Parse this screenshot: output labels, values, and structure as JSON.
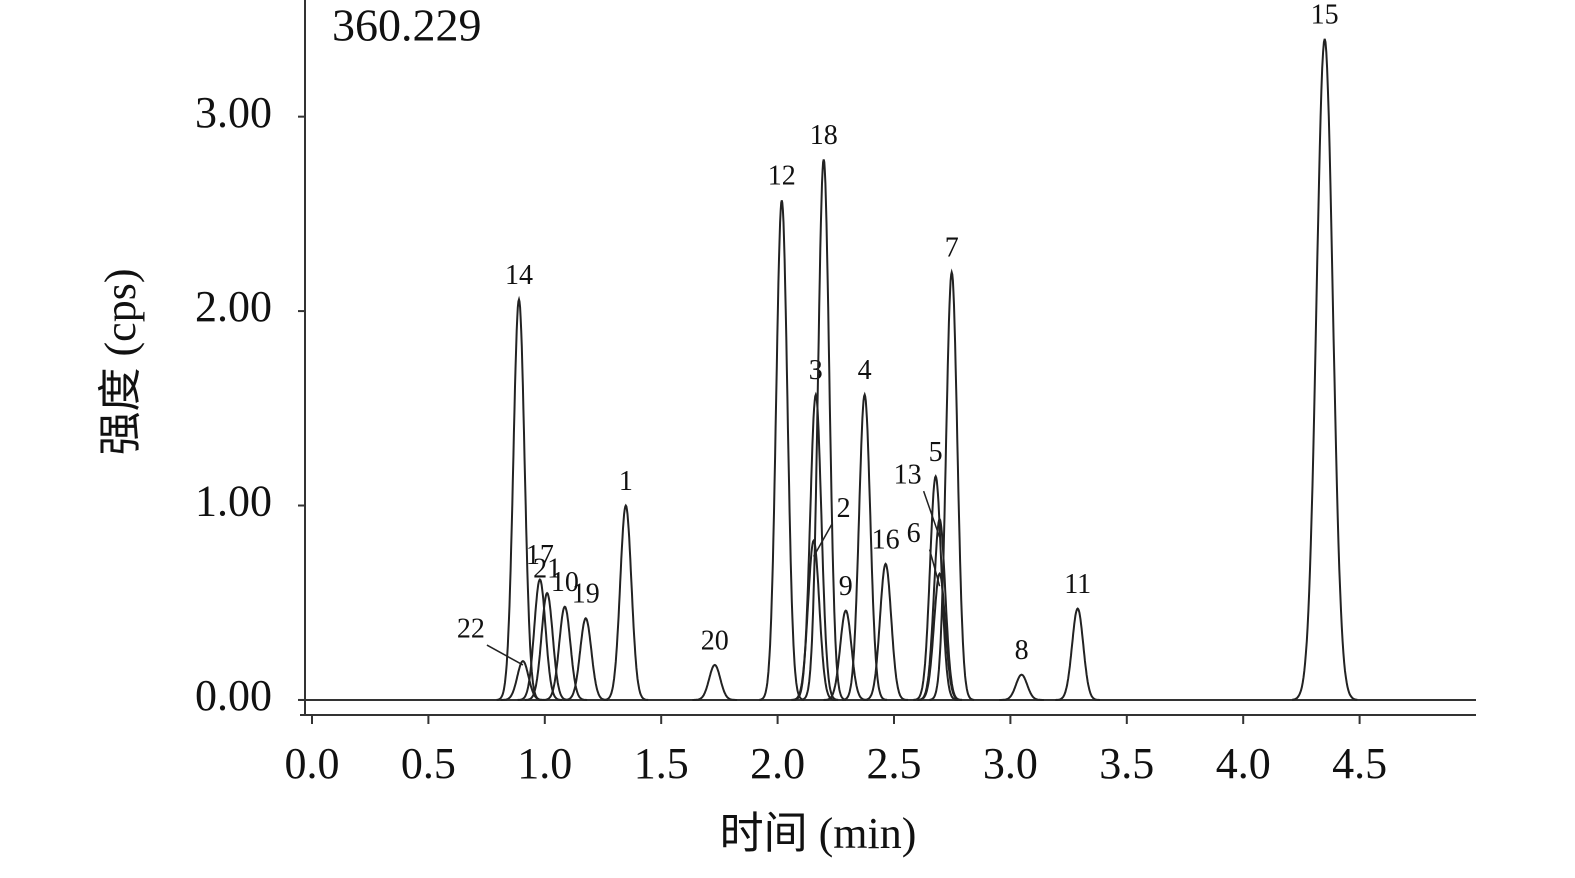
{
  "chart_data": {
    "type": "chromatogram",
    "annotation": "360.229",
    "xlabel": "时间 (min)",
    "ylabel": "强度 (cps)",
    "xlim": [
      0,
      5.0
    ],
    "ylim": [
      -0.08,
      3.6
    ],
    "xticks": [
      {
        "value": 0,
        "label": "0.0"
      },
      0.5,
      {
        "value": 1,
        "label": "1.0"
      },
      1.5,
      {
        "value": 2,
        "label": "2.0"
      },
      2.5,
      {
        "value": 3,
        "label": "3.0"
      },
      3.5,
      {
        "value": 4,
        "label": "4.0"
      },
      4.5
    ],
    "yticks": [
      {
        "value": 0,
        "label": "0.00"
      },
      {
        "value": 1,
        "label": "1.00"
      },
      {
        "value": 2,
        "label": "2.00"
      },
      {
        "value": 3,
        "label": "3.00"
      }
    ],
    "color": "#222222",
    "peaks": {
      "labels": [
        "14",
        "22",
        "17",
        "21",
        "10",
        "19",
        "1",
        "20",
        "12",
        "3",
        "2",
        "18",
        "9",
        "4",
        "16",
        "6",
        "13",
        "5",
        "7",
        "8",
        "11",
        "15"
      ],
      "x": [
        0.889,
        0.906,
        0.979,
        1.01,
        1.086,
        1.176,
        1.348,
        1.73,
        2.018,
        2.164,
        2.155,
        2.198,
        2.293,
        2.374,
        2.464,
        2.696,
        2.696,
        2.679,
        2.748,
        3.048,
        3.289,
        4.35
      ],
      "values": [
        2.06,
        0.2,
        0.62,
        0.55,
        0.48,
        0.42,
        1.0,
        0.18,
        2.57,
        1.57,
        0.82,
        2.78,
        0.46,
        1.57,
        0.7,
        0.65,
        0.93,
        1.15,
        2.2,
        0.13,
        0.47,
        3.4
      ]
    }
  }
}
